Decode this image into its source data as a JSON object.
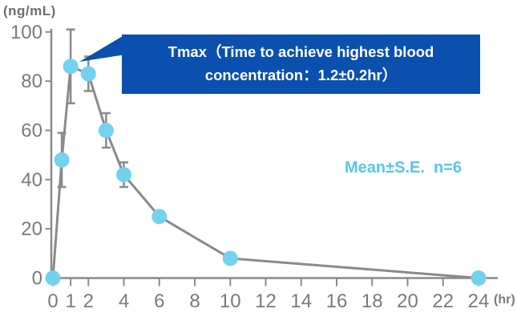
{
  "labels": {
    "y_unit": "(ng/mL)",
    "x_unit": "(hr)"
  },
  "chart_data": {
    "type": "line",
    "title": "",
    "ylabel": "(ng/mL)",
    "xlabel": "(hr)",
    "x": [
      0,
      0.5,
      1,
      2,
      3,
      4,
      6,
      10,
      24
    ],
    "values": [
      0,
      48,
      86,
      83,
      60,
      42,
      25,
      8,
      0
    ],
    "se": [
      0,
      11,
      15,
      7,
      7,
      5,
      0,
      0,
      0
    ],
    "x_ticks": [
      0,
      1,
      2,
      4,
      6,
      8,
      10,
      12,
      14,
      16,
      18,
      20,
      22,
      24
    ],
    "y_ticks": [
      0,
      20,
      40,
      60,
      80,
      100
    ],
    "xlim": [
      0,
      24
    ],
    "ylim": [
      0,
      100
    ],
    "grid": false,
    "annotations": {
      "tmax_callout": "Tmax（Time to achieve highest blood concentration：1.2±0.2hr）",
      "stat_note": "Mean±S.E.  n=6"
    }
  },
  "colors": {
    "point": "#72d2f0",
    "line": "#8a8a8a",
    "axis": "#8a8a8a",
    "tick_label": "#7a7a7a",
    "callout_bg": "#0b50ae",
    "callout_text": "#ffffff",
    "legend_text": "#57c7e8"
  }
}
